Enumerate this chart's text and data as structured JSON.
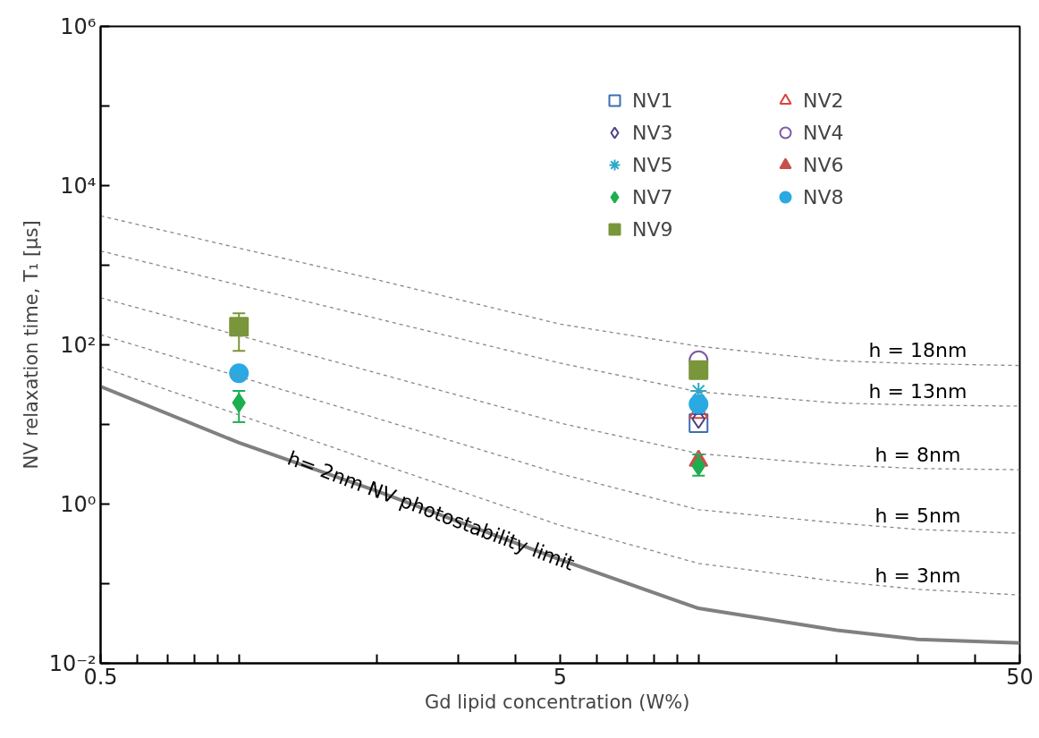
{
  "chart_data": {
    "type": "scatter",
    "xlabel": "Gd lipid concentration  (W%)",
    "ylabel": "NV relaxation time, T₁ [µs]",
    "log": "xy",
    "xlim": [
      0.5,
      50
    ],
    "ylim": [
      0.01,
      1000000
    ],
    "xticks": [
      {
        "value": 0.5,
        "label": "0.5"
      },
      {
        "value": 0.6,
        "label": null
      },
      {
        "value": 0.7,
        "label": null
      },
      {
        "value": 0.8,
        "label": null
      },
      {
        "value": 0.9,
        "label": null
      },
      {
        "value": 1,
        "label": null
      },
      {
        "value": 2,
        "label": null
      },
      {
        "value": 3,
        "label": null
      },
      {
        "value": 4,
        "label": null
      },
      {
        "value": 5,
        "label": "5"
      },
      {
        "value": 6,
        "label": null
      },
      {
        "value": 7,
        "label": null
      },
      {
        "value": 8,
        "label": null
      },
      {
        "value": 9,
        "label": null
      },
      {
        "value": 10,
        "label": null
      },
      {
        "value": 20,
        "label": null
      },
      {
        "value": 30,
        "label": null
      },
      {
        "value": 40,
        "label": null
      },
      {
        "value": 50,
        "label": "50"
      }
    ],
    "yticks": [
      {
        "value": 0.01,
        "label": "10⁻²"
      },
      {
        "value": 0.1,
        "label": null
      },
      {
        "value": 1,
        "label": "10⁰"
      },
      {
        "value": 10,
        "label": null
      },
      {
        "value": 100,
        "label": "10²"
      },
      {
        "value": 1000,
        "label": null
      },
      {
        "value": 10000,
        "label": "10⁴"
      },
      {
        "value": 100000,
        "label": null
      },
      {
        "value": 1000000,
        "label": "10⁶"
      }
    ],
    "grid": false,
    "legend": "top right",
    "series": [
      {
        "name": "NV1",
        "marker": "square",
        "color": "#3a6fb5",
        "x": [
          10
        ],
        "values": [
          10.4
        ]
      },
      {
        "name": "NV2",
        "marker": "triangle",
        "color": "#d9443f",
        "x": [
          10
        ],
        "values": [
          14
        ]
      },
      {
        "name": "NV3",
        "marker": "diamond",
        "color": "#4b3f80",
        "x": [
          10
        ],
        "values": [
          11.7
        ]
      },
      {
        "name": "NV4",
        "marker": "circle",
        "color": "#7e5aa6",
        "x": [
          10
        ],
        "values": [
          64
        ]
      },
      {
        "name": "NV5",
        "marker": "cross",
        "color": "#2aa9c9",
        "x": [
          10
        ],
        "values": [
          26.4
        ]
      },
      {
        "name": "NV6",
        "marker": "triangle",
        "color": "#c8504a",
        "x": [
          10
        ],
        "values": [
          3.5
        ]
      },
      {
        "name": "NV7",
        "marker": "diamond",
        "color": "#1daf4f",
        "x": [
          1,
          10
        ],
        "values": [
          18.7,
          3.0
        ],
        "errors": [
          [
            10.7,
            26.4
          ],
          [
            2.27,
            4.2
          ]
        ]
      },
      {
        "name": "NV8",
        "marker": "circle",
        "color": "#2aa9e3",
        "x": [
          1,
          10
        ],
        "values": [
          44,
          18
        ]
      },
      {
        "name": "NV9",
        "marker": "square",
        "color": "#7a963a",
        "x": [
          1,
          10
        ],
        "values": [
          169,
          48
        ],
        "errors": [
          [
            84,
            249
          ],
          null
        ]
      },
      {
        "name": "h = 18nm",
        "type": "line",
        "line_style": "dashed",
        "color": "#888888",
        "x": [
          0.5,
          1,
          2,
          5,
          10,
          20,
          30,
          50
        ],
        "values": [
          4170,
          1640,
          655,
          182,
          96,
          63,
          58,
          55
        ]
      },
      {
        "name": "h = 13nm",
        "type": "line",
        "line_style": "dashed",
        "color": "#888888",
        "x": [
          0.5,
          1,
          2,
          5,
          10,
          20,
          30,
          50
        ],
        "values": [
          1510,
          563,
          213,
          59,
          25.7,
          18.6,
          17.5,
          17
        ]
      },
      {
        "name": "h = 8nm",
        "type": "line",
        "line_style": "dashed",
        "color": "#888888",
        "x": [
          0.5,
          1,
          2,
          5,
          10,
          20,
          30,
          50
        ],
        "values": [
          390,
          131,
          44,
          10.4,
          4.3,
          3.1,
          2.8,
          2.7
        ]
      },
      {
        "name": "h = 5nm",
        "type": "line",
        "line_style": "dashed",
        "color": "#888888",
        "x": [
          0.5,
          1,
          2,
          5,
          10,
          20,
          30,
          50
        ],
        "values": [
          134,
          40,
          11.9,
          2.4,
          0.85,
          0.58,
          0.48,
          0.43
        ]
      },
      {
        "name": "h = 3nm",
        "type": "line",
        "line_style": "dashed",
        "color": "#888888",
        "x": [
          0.5,
          1,
          2,
          5,
          10,
          20,
          30,
          50
        ],
        "values": [
          53,
          13.2,
          3.3,
          0.54,
          0.18,
          0.107,
          0.085,
          0.072
        ]
      },
      {
        "name": "h= 2nm NV photostability limit",
        "type": "line",
        "line_style": "solid",
        "color": "#808080",
        "x": [
          0.5,
          1,
          2,
          5,
          10,
          20,
          30,
          50
        ],
        "values": [
          30,
          5.9,
          1.45,
          0.2,
          0.049,
          0.026,
          0.02,
          0.018
        ]
      }
    ]
  }
}
